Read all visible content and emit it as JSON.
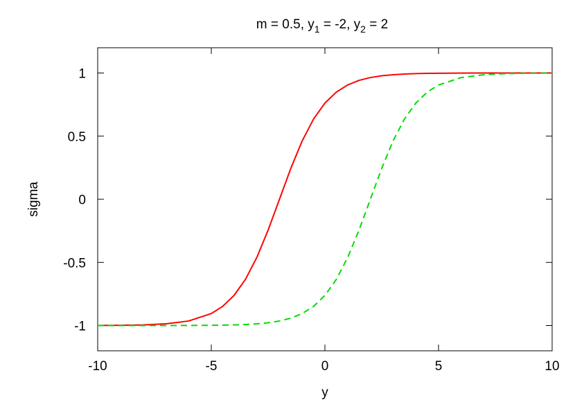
{
  "chart_data": {
    "type": "line",
    "title": {
      "prefix": "m = 0.5, y",
      "sub1": "1",
      "mid": " = -2, y",
      "sub2": "2",
      "suffix": " = 2"
    },
    "xlabel": "y",
    "ylabel": "sigma",
    "xlim": [
      -10,
      10
    ],
    "ylim": [
      -1.2,
      1.2
    ],
    "xticks": [
      -10,
      -5,
      0,
      5,
      10
    ],
    "xtick_labels": [
      "-10",
      "-5",
      "0",
      "5",
      "10"
    ],
    "yticks": [
      -1,
      -0.5,
      0,
      0.5,
      1
    ],
    "ytick_labels": [
      "-1",
      "-0.5",
      "0",
      "0.5",
      "1"
    ],
    "grid": false,
    "legend": "none",
    "x": [
      -10,
      -9,
      -8,
      -7,
      -6,
      -5,
      -4.5,
      -4,
      -3.5,
      -3,
      -2.5,
      -2,
      -1.5,
      -1,
      -0.5,
      0,
      0.5,
      1,
      1.5,
      2,
      2.5,
      3,
      3.5,
      4,
      4.5,
      5,
      6,
      7,
      8,
      9,
      10
    ],
    "series": [
      {
        "color": "#ff0000",
        "dash": "solid",
        "values": [
          -0.9993,
          -0.9982,
          -0.9951,
          -0.9866,
          -0.964,
          -0.9051,
          -0.8483,
          -0.7616,
          -0.6351,
          -0.4621,
          -0.2449,
          0.0,
          0.2449,
          0.4621,
          0.6351,
          0.7616,
          0.8483,
          0.9051,
          0.9414,
          0.964,
          0.978,
          0.9866,
          0.9918,
          0.9951,
          0.997,
          0.9982,
          0.9993,
          0.9998,
          0.9999,
          1.0,
          1.0
        ]
      },
      {
        "color": "#00dd00",
        "dash": "dashed",
        "values": [
          -1.0,
          -1.0,
          -0.9999,
          -0.9998,
          -0.9993,
          -0.9982,
          -0.997,
          -0.9951,
          -0.9918,
          -0.9866,
          -0.978,
          -0.964,
          -0.9414,
          -0.9051,
          -0.8483,
          -0.7616,
          -0.6351,
          -0.4621,
          -0.2449,
          0.0,
          0.2449,
          0.4621,
          0.6351,
          0.7616,
          0.8483,
          0.9051,
          0.964,
          0.9866,
          0.9951,
          0.9982,
          0.9993
        ]
      }
    ]
  }
}
